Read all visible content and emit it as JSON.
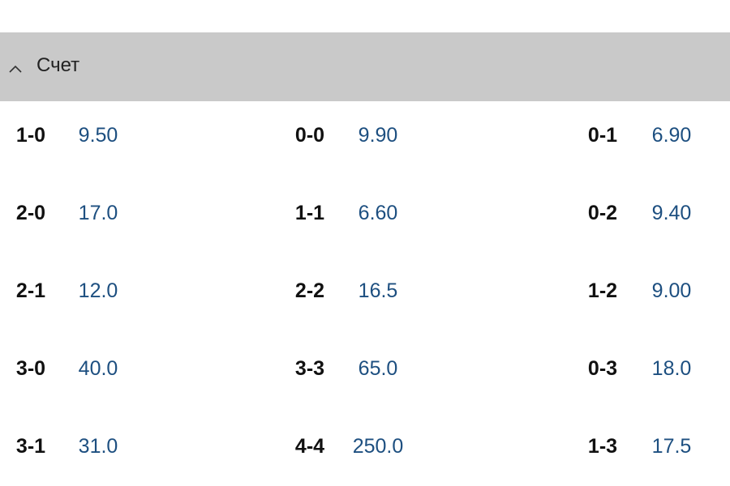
{
  "header": {
    "title": "Счет"
  },
  "table": {
    "rows": [
      [
        {
          "score": "1-0",
          "odds": "9.50"
        },
        {
          "score": "0-0",
          "odds": "9.90"
        },
        {
          "score": "0-1",
          "odds": "6.90"
        }
      ],
      [
        {
          "score": "2-0",
          "odds": "17.0"
        },
        {
          "score": "1-1",
          "odds": "6.60"
        },
        {
          "score": "0-2",
          "odds": "9.40"
        }
      ],
      [
        {
          "score": "2-1",
          "odds": "12.0"
        },
        {
          "score": "2-2",
          "odds": "16.5"
        },
        {
          "score": "1-2",
          "odds": "9.00"
        }
      ],
      [
        {
          "score": "3-0",
          "odds": "40.0"
        },
        {
          "score": "3-3",
          "odds": "65.0"
        },
        {
          "score": "0-3",
          "odds": "18.0"
        }
      ],
      [
        {
          "score": "3-1",
          "odds": "31.0"
        },
        {
          "score": "4-4",
          "odds": "250.0"
        },
        {
          "score": "1-3",
          "odds": "17.5"
        }
      ]
    ]
  }
}
